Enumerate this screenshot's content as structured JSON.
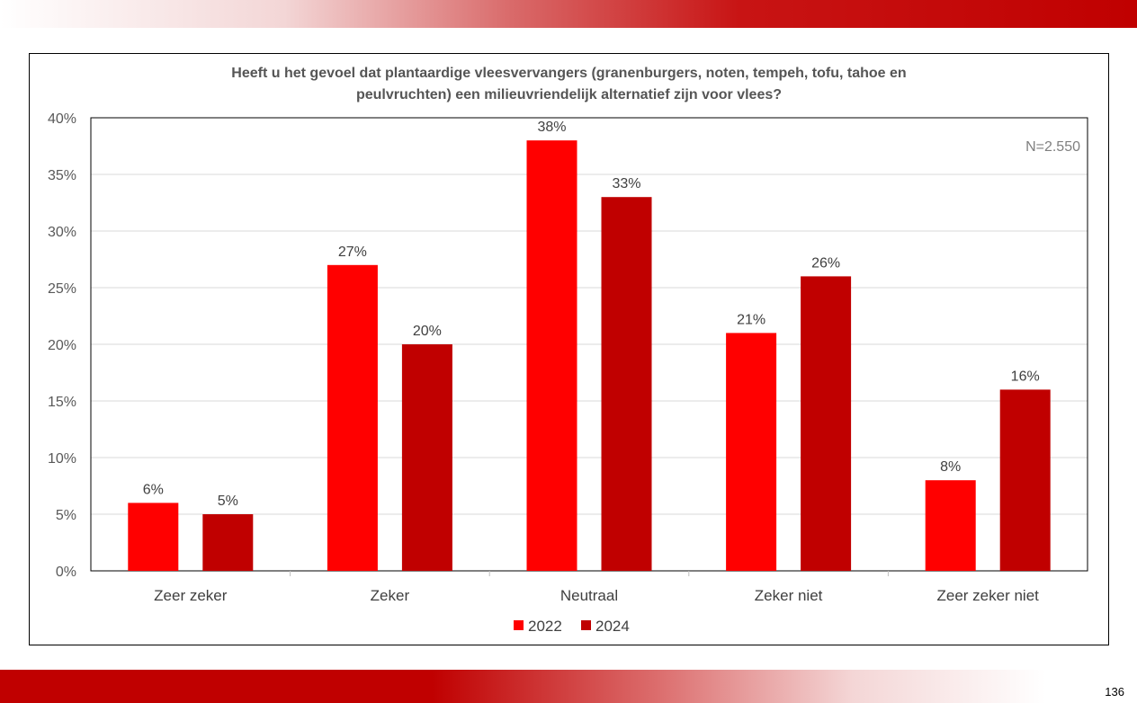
{
  "page_number": "136",
  "chart_data": {
    "type": "bar",
    "title_lines": [
      "Heeft u het gevoel dat plantaardige vleesvervangers (granenburgers, noten, tempeh, tofu, tahoe en",
      "peulvruchten) een milieuvriendelijk alternatief zijn voor vlees?"
    ],
    "annotation": "N=2.550",
    "categories": [
      "Zeer zeker",
      "Zeker",
      "Neutraal",
      "Zeker niet",
      "Zeer zeker niet"
    ],
    "series": [
      {
        "name": "2022",
        "color": "#ff0000",
        "values": [
          6,
          27,
          38,
          21,
          8
        ]
      },
      {
        "name": "2024",
        "color": "#c00000",
        "values": [
          5,
          20,
          33,
          26,
          16
        ]
      }
    ],
    "ylim": [
      0,
      40
    ],
    "yticks": [
      0,
      5,
      10,
      15,
      20,
      25,
      30,
      35,
      40
    ],
    "value_format": "percent",
    "grid": true,
    "legend_position": "bottom"
  }
}
